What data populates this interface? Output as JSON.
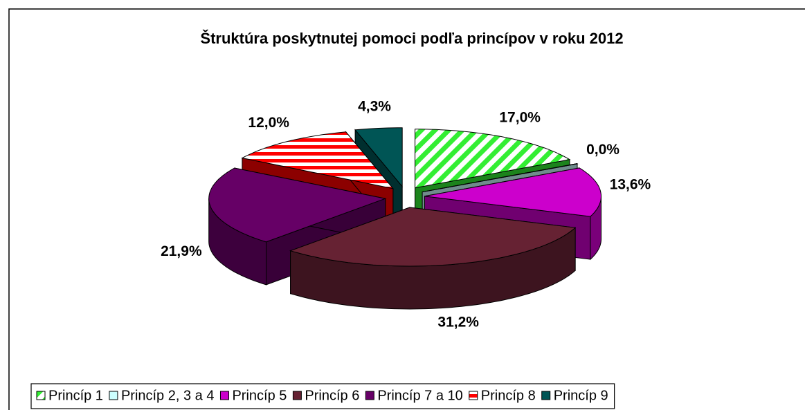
{
  "chart_data": {
    "type": "pie",
    "title": "Štruktúra poskytnutej pomoci podľa princípov v roku 2012",
    "categories": [
      "Princíp 1",
      "Princíp 2, 3 a 4",
      "Princíp 5",
      "Princíp 6",
      "Princíp 7 a 10",
      "Princíp 8",
      "Princíp 9"
    ],
    "values": [
      17.0,
      0.0,
      13.6,
      31.2,
      21.9,
      12.0,
      4.3
    ],
    "value_labels": [
      "17,0%",
      "0,0%",
      "13,6%",
      "31,2%",
      "21,9%",
      "12,0%",
      "4,3%"
    ],
    "colors": [
      "#33ee33",
      "#ccffff",
      "#cc00cc",
      "#662233",
      "#660066",
      "#ff0000",
      "#005555"
    ],
    "patterns": [
      "diagonal",
      null,
      null,
      null,
      null,
      "horizontal",
      null
    ],
    "legend": "bottom"
  }
}
